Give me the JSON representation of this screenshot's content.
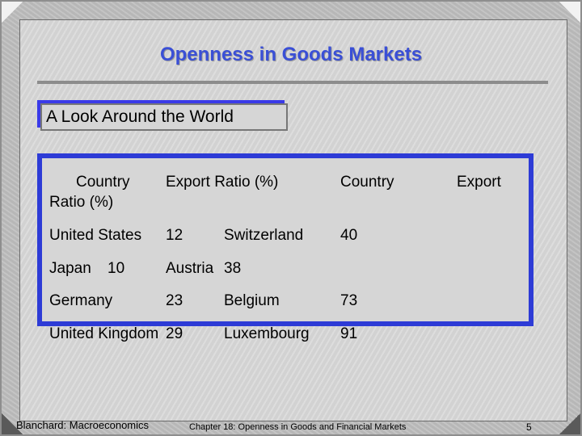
{
  "slide": {
    "title": "Openness in Goods Markets",
    "subtitle": "A Look Around the World"
  },
  "table": {
    "header_line1": "Country",
    "header_line2": "Ratio (%)",
    "header_export_ratio": "Export Ratio (%)",
    "header_country2": "Country",
    "header_export2": "Export",
    "rows": [
      {
        "c1": "United States",
        "v1": "12",
        "c2": "Switzerland",
        "v2": "40"
      },
      {
        "c1": "Japan",
        "v1": "10",
        "c2": "Austria",
        "v2": "38"
      },
      {
        "c1": "Germany",
        "v1": "23",
        "c2": "Belgium",
        "v2": "73"
      },
      {
        "c1": "United Kingdom",
        "v1": "29",
        "c2": "Luxembourg",
        "v2": "91"
      }
    ]
  },
  "footer": {
    "left": "Blanchard: Macroeconomics",
    "center": "Chapter 18:  Openness in Goods and Financial Markets",
    "page": "5"
  }
}
